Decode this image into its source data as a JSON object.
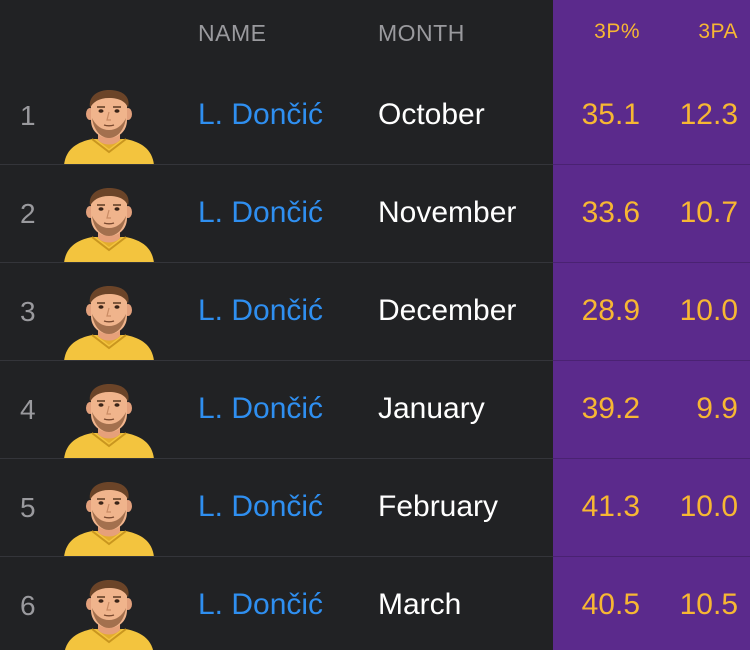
{
  "header": {
    "name": "NAME",
    "month": "MONTH",
    "three_pct": "3P%",
    "three_pa": "3PA"
  },
  "colors": {
    "background": "#212224",
    "stat_column_bg": "#5b2a8c",
    "player_link": "#2f8ff0",
    "stat_value": "#f7b733",
    "muted": "#9a9a9e"
  },
  "rows": [
    {
      "rank": "1",
      "player": "L. Dončić",
      "month": "October",
      "three_pct": "35.1",
      "three_pa": "12.3",
      "avatar_icon": "player-headshot-icon"
    },
    {
      "rank": "2",
      "player": "L. Dončić",
      "month": "November",
      "three_pct": "33.6",
      "three_pa": "10.7",
      "avatar_icon": "player-headshot-icon"
    },
    {
      "rank": "3",
      "player": "L. Dončić",
      "month": "December",
      "three_pct": "28.9",
      "three_pa": "10.0",
      "avatar_icon": "player-headshot-icon"
    },
    {
      "rank": "4",
      "player": "L. Dončić",
      "month": "January",
      "three_pct": "39.2",
      "three_pa": "9.9",
      "avatar_icon": "player-headshot-icon"
    },
    {
      "rank": "5",
      "player": "L. Dončić",
      "month": "February",
      "three_pct": "41.3",
      "three_pa": "10.0",
      "avatar_icon": "player-headshot-icon"
    },
    {
      "rank": "6",
      "player": "L. Dončić",
      "month": "March",
      "three_pct": "40.5",
      "three_pa": "10.5",
      "avatar_icon": "player-headshot-icon"
    }
  ]
}
